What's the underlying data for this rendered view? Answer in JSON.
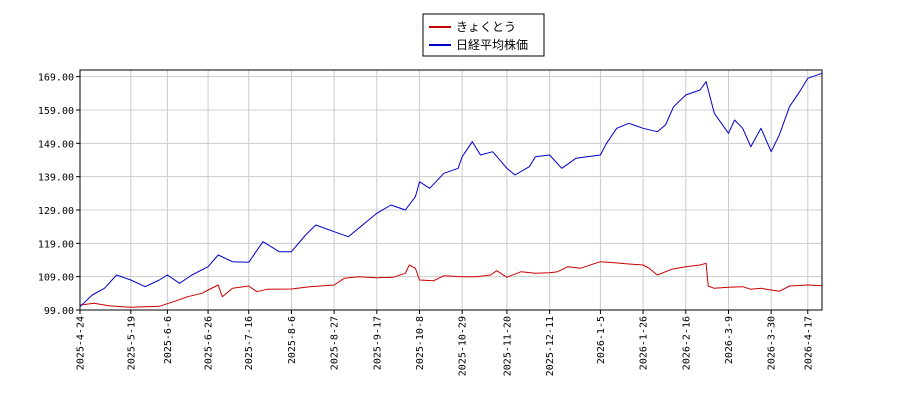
{
  "chart_data": {
    "type": "line",
    "title": "",
    "xlabel": "",
    "ylabel": "",
    "ylim": [
      99.0,
      171.0
    ],
    "xlim": [
      "2025-04-24",
      "2026-04-24"
    ],
    "y_ticks": [
      "99.00",
      "109.00",
      "119.00",
      "129.00",
      "139.00",
      "149.00",
      "159.00",
      "169.00"
    ],
    "x_ticks": [
      "2025-4-24",
      "2025-5-19",
      "2025-6-6",
      "2025-6-26",
      "2025-7-16",
      "2025-8-6",
      "2025-8-27",
      "2025-9-17",
      "2025-10-8",
      "2025-10-29",
      "2025-11-20",
      "2025-12-11",
      "2026-1-5",
      "2026-1-26",
      "2026-2-16",
      "2026-3-9",
      "2026-3-30",
      "2026-4-17"
    ],
    "grid": true,
    "legend_position": "top-center",
    "series": [
      {
        "name": "きょくとう",
        "color": "#cc0000",
        "points": [
          [
            "2025-04-24",
            100.5
          ],
          [
            "2025-05-01",
            101.0
          ],
          [
            "2025-05-08",
            100.3
          ],
          [
            "2025-05-19",
            99.8
          ],
          [
            "2025-05-26",
            100.0
          ],
          [
            "2025-06-02",
            100.1
          ],
          [
            "2025-06-09",
            101.5
          ],
          [
            "2025-06-16",
            103.0
          ],
          [
            "2025-06-23",
            104.0
          ],
          [
            "2025-06-26",
            105.0
          ],
          [
            "2025-07-01",
            106.5
          ],
          [
            "2025-07-03",
            103.0
          ],
          [
            "2025-07-08",
            105.5
          ],
          [
            "2025-07-16",
            106.2
          ],
          [
            "2025-07-20",
            104.5
          ],
          [
            "2025-07-25",
            105.2
          ],
          [
            "2025-08-06",
            105.3
          ],
          [
            "2025-08-15",
            106.0
          ],
          [
            "2025-08-27",
            106.5
          ],
          [
            "2025-09-01",
            108.5
          ],
          [
            "2025-09-08",
            109.0
          ],
          [
            "2025-09-17",
            108.7
          ],
          [
            "2025-09-25",
            108.8
          ],
          [
            "2025-10-01",
            110.0
          ],
          [
            "2025-10-03",
            112.5
          ],
          [
            "2025-10-06",
            111.5
          ],
          [
            "2025-10-08",
            108.0
          ],
          [
            "2025-10-15",
            107.8
          ],
          [
            "2025-10-20",
            109.3
          ],
          [
            "2025-10-29",
            109.0
          ],
          [
            "2025-11-05",
            109.0
          ],
          [
            "2025-11-12",
            109.5
          ],
          [
            "2025-11-15",
            110.8
          ],
          [
            "2025-11-20",
            108.8
          ],
          [
            "2025-11-27",
            110.5
          ],
          [
            "2025-12-04",
            110.0
          ],
          [
            "2025-12-11",
            110.2
          ],
          [
            "2025-12-15",
            110.5
          ],
          [
            "2025-12-20",
            112.0
          ],
          [
            "2025-12-26",
            111.5
          ],
          [
            "2026-01-05",
            113.5
          ],
          [
            "2026-01-12",
            113.2
          ],
          [
            "2026-01-19",
            112.8
          ],
          [
            "2026-01-26",
            112.5
          ],
          [
            "2026-01-29",
            111.5
          ],
          [
            "2026-02-02",
            109.5
          ],
          [
            "2026-02-09",
            111.2
          ],
          [
            "2026-02-16",
            112.0
          ],
          [
            "2026-02-23",
            112.5
          ],
          [
            "2026-02-26",
            113.0
          ],
          [
            "2026-02-27",
            106.2
          ],
          [
            "2026-03-02",
            105.5
          ],
          [
            "2026-03-09",
            105.8
          ],
          [
            "2026-03-16",
            106.0
          ],
          [
            "2026-03-20",
            105.2
          ],
          [
            "2026-03-25",
            105.5
          ],
          [
            "2026-03-30",
            105.0
          ],
          [
            "2026-04-03",
            104.6
          ],
          [
            "2026-04-08",
            106.2
          ],
          [
            "2026-04-17",
            106.5
          ],
          [
            "2026-04-24",
            106.3
          ]
        ]
      },
      {
        "name": "日経平均株価",
        "color": "#0000cc",
        "points": [
          [
            "2025-04-24",
            100.0
          ],
          [
            "2025-04-30",
            103.5
          ],
          [
            "2025-05-06",
            105.5
          ],
          [
            "2025-05-12",
            109.5
          ],
          [
            "2025-05-19",
            108.0
          ],
          [
            "2025-05-26",
            106.0
          ],
          [
            "2025-06-02",
            108.0
          ],
          [
            "2025-06-06",
            109.5
          ],
          [
            "2025-06-12",
            107.0
          ],
          [
            "2025-06-18",
            109.5
          ],
          [
            "2025-06-26",
            112.0
          ],
          [
            "2025-07-01",
            115.5
          ],
          [
            "2025-07-08",
            113.5
          ],
          [
            "2025-07-16",
            113.3
          ],
          [
            "2025-07-23",
            119.5
          ],
          [
            "2025-07-31",
            116.5
          ],
          [
            "2025-08-06",
            116.5
          ],
          [
            "2025-08-13",
            121.5
          ],
          [
            "2025-08-18",
            124.5
          ],
          [
            "2025-08-27",
            122.5
          ],
          [
            "2025-09-03",
            121.0
          ],
          [
            "2025-09-10",
            124.5
          ],
          [
            "2025-09-17",
            128.0
          ],
          [
            "2025-09-24",
            130.5
          ],
          [
            "2025-10-01",
            129.0
          ],
          [
            "2025-10-06",
            133.0
          ],
          [
            "2025-10-08",
            137.5
          ],
          [
            "2025-10-13",
            135.5
          ],
          [
            "2025-10-20",
            140.0
          ],
          [
            "2025-10-27",
            141.5
          ],
          [
            "2025-10-29",
            145.0
          ],
          [
            "2025-11-03",
            149.5
          ],
          [
            "2025-11-07",
            145.5
          ],
          [
            "2025-11-13",
            146.5
          ],
          [
            "2025-11-20",
            141.5
          ],
          [
            "2025-11-24",
            139.5
          ],
          [
            "2025-12-01",
            142.0
          ],
          [
            "2025-12-04",
            145.0
          ],
          [
            "2025-12-11",
            145.5
          ],
          [
            "2025-12-17",
            141.5
          ],
          [
            "2025-12-24",
            144.5
          ],
          [
            "2026-01-05",
            145.5
          ],
          [
            "2026-01-08",
            149.0
          ],
          [
            "2026-01-13",
            153.5
          ],
          [
            "2026-01-19",
            155.0
          ],
          [
            "2026-01-26",
            153.5
          ],
          [
            "2026-02-02",
            152.5
          ],
          [
            "2026-02-06",
            154.5
          ],
          [
            "2026-02-10",
            160.0
          ],
          [
            "2026-02-16",
            163.5
          ],
          [
            "2026-02-23",
            165.0
          ],
          [
            "2026-02-26",
            167.5
          ],
          [
            "2026-03-02",
            158.0
          ],
          [
            "2026-03-09",
            152.0
          ],
          [
            "2026-03-12",
            156.0
          ],
          [
            "2026-03-16",
            153.5
          ],
          [
            "2026-03-20",
            148.0
          ],
          [
            "2026-03-25",
            153.5
          ],
          [
            "2026-03-30",
            146.5
          ],
          [
            "2026-04-03",
            151.5
          ],
          [
            "2026-04-08",
            160.0
          ],
          [
            "2026-04-13",
            164.5
          ],
          [
            "2026-04-17",
            168.5
          ],
          [
            "2026-04-24",
            170.0
          ]
        ]
      }
    ]
  }
}
